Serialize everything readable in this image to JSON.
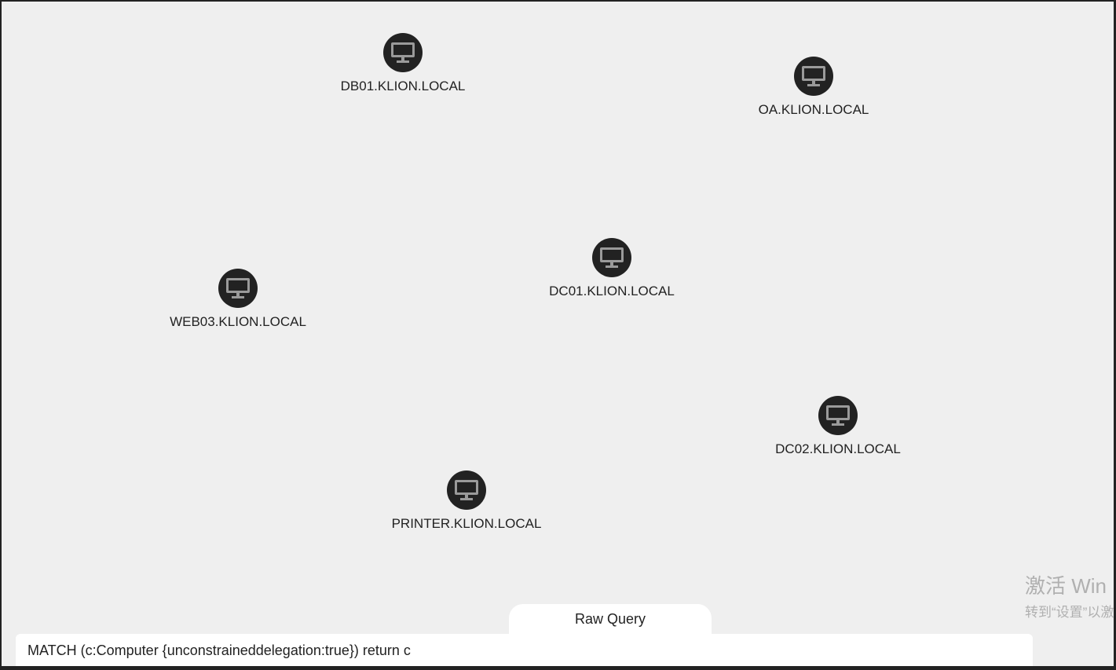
{
  "graph": {
    "nodes": [
      {
        "label": "DB01.KLION.LOCAL",
        "type": "Computer",
        "icon": "monitor-icon"
      },
      {
        "label": "OA.KLION.LOCAL",
        "type": "Computer",
        "icon": "monitor-icon"
      },
      {
        "label": "DC01.KLION.LOCAL",
        "type": "Computer",
        "icon": "monitor-icon"
      },
      {
        "label": "WEB03.KLION.LOCAL",
        "type": "Computer",
        "icon": "monitor-icon"
      },
      {
        "label": "DC02.KLION.LOCAL",
        "type": "Computer",
        "icon": "monitor-icon"
      },
      {
        "label": "PRINTER.KLION.LOCAL",
        "type": "Computer",
        "icon": "monitor-icon"
      }
    ],
    "node_color": "#222222",
    "icon_color": "#9a9a9a",
    "background": "#efefef"
  },
  "raw_query": {
    "tab_label": "Raw Query",
    "value": "MATCH (c:Computer {unconstraineddelegation:true}) return c"
  },
  "watermark": {
    "line1": "激活 Win",
    "line2": "转到“设置”以激"
  }
}
